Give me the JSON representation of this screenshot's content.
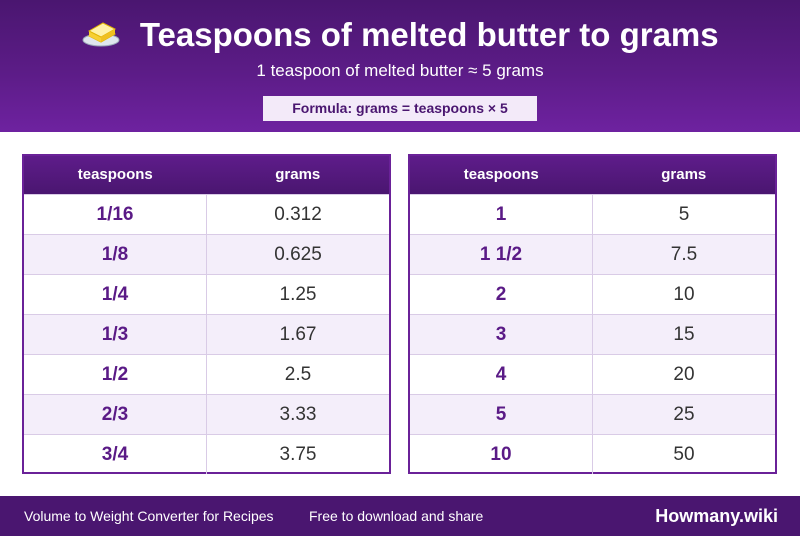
{
  "header": {
    "icon": "butter-icon",
    "title": "Teaspoons of melted butter to grams",
    "subtitle": "1 teaspoon of melted butter ≈ 5 grams",
    "formula": "Formula: grams = teaspoons × 5"
  },
  "colors": {
    "brand": "#4a1670",
    "accent": "#6a2198",
    "row_alt": "#f4eefa"
  },
  "tables": [
    {
      "headers": [
        "teaspoons",
        "grams"
      ],
      "rows": [
        [
          "1/16",
          "0.312"
        ],
        [
          "1/8",
          "0.625"
        ],
        [
          "1/4",
          "1.25"
        ],
        [
          "1/3",
          "1.67"
        ],
        [
          "1/2",
          "2.5"
        ],
        [
          "2/3",
          "3.33"
        ],
        [
          "3/4",
          "3.75"
        ]
      ]
    },
    {
      "headers": [
        "teaspoons",
        "grams"
      ],
      "rows": [
        [
          "1",
          "5"
        ],
        [
          "1 1/2",
          "7.5"
        ],
        [
          "2",
          "10"
        ],
        [
          "3",
          "15"
        ],
        [
          "4",
          "20"
        ],
        [
          "5",
          "25"
        ],
        [
          "10",
          "50"
        ]
      ]
    }
  ],
  "footer": {
    "left_text": "Volume to Weight Converter for Recipes",
    "middle_text": "Free to download and share",
    "brand": "Howmany.wiki"
  }
}
